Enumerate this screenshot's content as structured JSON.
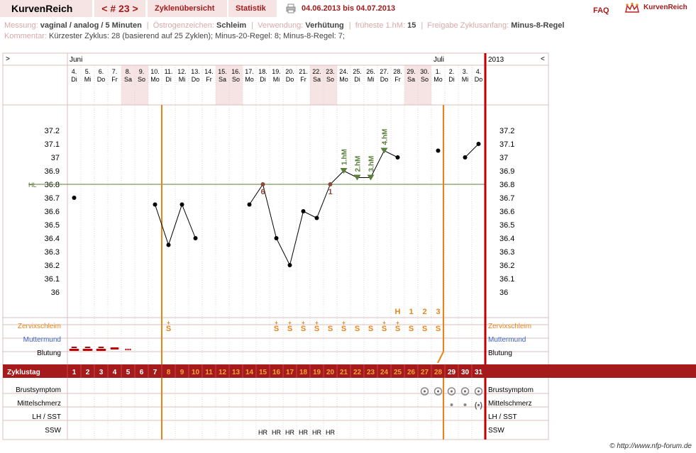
{
  "header": {
    "app_title": "KurvenReich",
    "cycle_nav": "< # 23 >",
    "tab_overview": "Zyklenübersicht",
    "tab_stats": "Statistik",
    "date_range": "04.06.2013 bis 04.07.2013",
    "faq": "FAQ",
    "logo_text": "KurvenReich"
  },
  "info": {
    "messung_label": "Messung:",
    "messung_value": "vaginal / analog / 5 Minuten",
    "oestrogen_label": "Östrogenzeichen:",
    "oestrogen_value": "Schleim",
    "verwendung_label": "Verwendung:",
    "verwendung_value": "Verhütung",
    "frueheste_label": "früheste 1.hM:",
    "frueheste_value": "15",
    "freigabe_label": "Freigabe Zyklusanfang:",
    "freigabe_value": "Minus-8-Regel",
    "kommentar_label": "Kommentar:",
    "kommentar_value": "Kürzester Zyklus: 28 (basierend auf 25 Zyklen); Minus-20-Regel: 8; Minus-8-Regel: 7;"
  },
  "chart_data": {
    "type": "line",
    "year_label": "2013",
    "nav_left": ">",
    "nav_right": "<",
    "months": [
      {
        "label": "Juni",
        "start_index": 0
      },
      {
        "label": "Juli",
        "start_index": 27
      }
    ],
    "days": [
      {
        "date": "4.",
        "wd": "Di",
        "we": false
      },
      {
        "date": "5.",
        "wd": "Mi",
        "we": false
      },
      {
        "date": "6.",
        "wd": "Do",
        "we": false
      },
      {
        "date": "7.",
        "wd": "Fr",
        "we": false
      },
      {
        "date": "8.",
        "wd": "Sa",
        "we": true
      },
      {
        "date": "9.",
        "wd": "So",
        "we": true
      },
      {
        "date": "10.",
        "wd": "Mo",
        "we": false
      },
      {
        "date": "11.",
        "wd": "Di",
        "we": false
      },
      {
        "date": "12.",
        "wd": "Mi",
        "we": false
      },
      {
        "date": "13.",
        "wd": "Do",
        "we": false
      },
      {
        "date": "14.",
        "wd": "Fr",
        "we": false
      },
      {
        "date": "15.",
        "wd": "Sa",
        "we": true
      },
      {
        "date": "16.",
        "wd": "So",
        "we": true
      },
      {
        "date": "17.",
        "wd": "Mo",
        "we": false
      },
      {
        "date": "18.",
        "wd": "Di",
        "we": false
      },
      {
        "date": "19.",
        "wd": "Mi",
        "we": false
      },
      {
        "date": "20.",
        "wd": "Do",
        "we": false
      },
      {
        "date": "21.",
        "wd": "Fr",
        "we": false
      },
      {
        "date": "22.",
        "wd": "Sa",
        "we": true
      },
      {
        "date": "23.",
        "wd": "So",
        "we": true
      },
      {
        "date": "24.",
        "wd": "Mo",
        "we": false
      },
      {
        "date": "25.",
        "wd": "Di",
        "we": false
      },
      {
        "date": "26.",
        "wd": "Mi",
        "we": false
      },
      {
        "date": "27.",
        "wd": "Do",
        "we": false
      },
      {
        "date": "28.",
        "wd": "Fr",
        "we": false
      },
      {
        "date": "29.",
        "wd": "Sa",
        "we": true
      },
      {
        "date": "30.",
        "wd": "So",
        "we": true
      },
      {
        "date": "1.",
        "wd": "Mo",
        "we": false
      },
      {
        "date": "2.",
        "wd": "Di",
        "we": false
      },
      {
        "date": "3.",
        "wd": "Mi",
        "we": false
      },
      {
        "date": "4.",
        "wd": "Do",
        "we": false
      }
    ],
    "ylim": [
      36.0,
      37.2
    ],
    "yticks": [
      "37.2",
      "37.1",
      "37",
      "36.9",
      "36.8",
      "36.7",
      "36.6",
      "36.5",
      "36.4",
      "36.3",
      "36.2",
      "36.1",
      "36"
    ],
    "hl_label": "HL",
    "hl_value": 36.8,
    "temps": [
      36.7,
      null,
      null,
      null,
      null,
      null,
      36.65,
      36.35,
      36.65,
      36.4,
      null,
      null,
      null,
      36.65,
      36.8,
      36.4,
      36.2,
      36.6,
      36.55,
      36.8,
      36.9,
      36.85,
      36.85,
      37.05,
      37.0,
      null,
      null,
      37.05,
      null,
      37.0,
      37.1
    ],
    "line_segments": [
      [
        6,
        9
      ],
      [
        13,
        24
      ],
      [
        29,
        30
      ]
    ],
    "special_points": [
      {
        "index": 14,
        "label": "6"
      },
      {
        "index": 19,
        "label": "1"
      }
    ],
    "hm_markers": [
      {
        "index": 20,
        "label": "1.hM"
      },
      {
        "index": 21,
        "label": "2.hM"
      },
      {
        "index": 22,
        "label": "3.hM"
      },
      {
        "index": 23,
        "label": "4.hM"
      }
    ],
    "peak_labels": [
      {
        "index": 24,
        "label": "H"
      },
      {
        "index": 25,
        "label": "1"
      },
      {
        "index": 26,
        "label": "2"
      },
      {
        "index": 27,
        "label": "3"
      }
    ],
    "cervix_row_label": "Zervixschleim",
    "cervix_items": [
      {
        "index": 7,
        "sym": "S",
        "plus": true
      },
      {
        "index": 15,
        "sym": "S",
        "plus": true
      },
      {
        "index": 16,
        "sym": "S",
        "plus": true
      },
      {
        "index": 17,
        "sym": "S",
        "plus": true
      },
      {
        "index": 18,
        "sym": "S",
        "plus": true
      },
      {
        "index": 19,
        "sym": "S",
        "plus": false
      },
      {
        "index": 20,
        "sym": "S",
        "plus": true
      },
      {
        "index": 21,
        "sym": "S",
        "plus": false
      },
      {
        "index": 22,
        "sym": "S",
        "plus": false
      },
      {
        "index": 23,
        "sym": "S",
        "plus": true
      },
      {
        "index": 24,
        "sym": "S",
        "plus": true
      },
      {
        "index": 25,
        "sym": "S",
        "plus": false
      },
      {
        "index": 26,
        "sym": "S",
        "plus": false
      },
      {
        "index": 27,
        "sym": "S",
        "plus": false
      }
    ],
    "muttermund_label": "Muttermund",
    "blutung_label": "Blutung",
    "bleeding": [
      {
        "index": 0,
        "level": "heavy"
      },
      {
        "index": 1,
        "level": "heavy"
      },
      {
        "index": 2,
        "level": "heavy"
      },
      {
        "index": 3,
        "level": "medium"
      },
      {
        "index": 4,
        "level": "spot"
      }
    ],
    "zyklustag_label": "Zyklustag",
    "cycle_days": [
      "1",
      "2",
      "3",
      "4",
      "5",
      "6",
      "7",
      "8",
      "9",
      "10",
      "11",
      "12",
      "13",
      "14",
      "15",
      "16",
      "17",
      "18",
      "19",
      "20",
      "21",
      "22",
      "23",
      "24",
      "25",
      "26",
      "27",
      "28",
      "29",
      "30",
      "31"
    ],
    "orange_days_from": 7,
    "orange_days_to": 27,
    "brust_label": "Brustsymptom",
    "brust_days": [
      26,
      27,
      28,
      29,
      30
    ],
    "mittel_label": "Mittelschmerz",
    "mittel_items": [
      {
        "index": 28,
        "kind": "dot"
      },
      {
        "index": 29,
        "kind": "dot"
      },
      {
        "index": 30,
        "kind": "bracket"
      }
    ],
    "lh_label": "LH / SST",
    "ssw_label": "SSW",
    "ssw_items": [
      {
        "index": 14,
        "label": "HR"
      },
      {
        "index": 15,
        "label": "HR"
      },
      {
        "index": 16,
        "label": "HR"
      },
      {
        "index": 17,
        "label": "HR"
      },
      {
        "index": 18,
        "label": "HR"
      },
      {
        "index": 19,
        "label": "HR"
      }
    ],
    "cover_line_after_index": 6,
    "cycle_end_after_index": 27
  },
  "copyright": "© http://www.nfp-forum.de",
  "colors": {
    "accent": "#a51a1a",
    "orange": "#e8831a",
    "green": "#5a7f3a",
    "weekend": "#f6e3e3",
    "grid": "#e7d3d3",
    "border": "#d8bfbf"
  }
}
